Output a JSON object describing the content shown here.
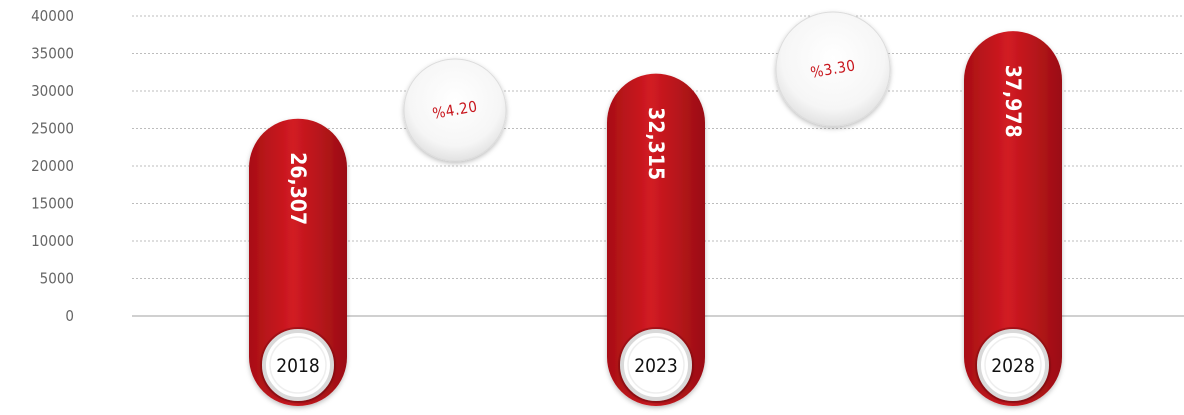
{
  "chart_data": {
    "type": "bar",
    "categories": [
      "2018",
      "2023",
      "2028"
    ],
    "values": [
      26307,
      32315,
      37978
    ],
    "value_labels": [
      "26,307",
      "32,315",
      "37,978"
    ],
    "growth_labels": [
      "%4.20",
      "%3.30"
    ],
    "y_ticks": [
      "40000",
      "35000",
      "30000",
      "25000",
      "20000",
      "15000",
      "10000",
      "5000",
      "0"
    ],
    "ylim": [
      0,
      40000
    ],
    "grid": true,
    "colors": {
      "bar": "#c8161d",
      "bar_dark": "#8e0d12",
      "growth_text": "#c8161d",
      "axis_text": "#666666",
      "grid": "#bdbdbd"
    }
  }
}
